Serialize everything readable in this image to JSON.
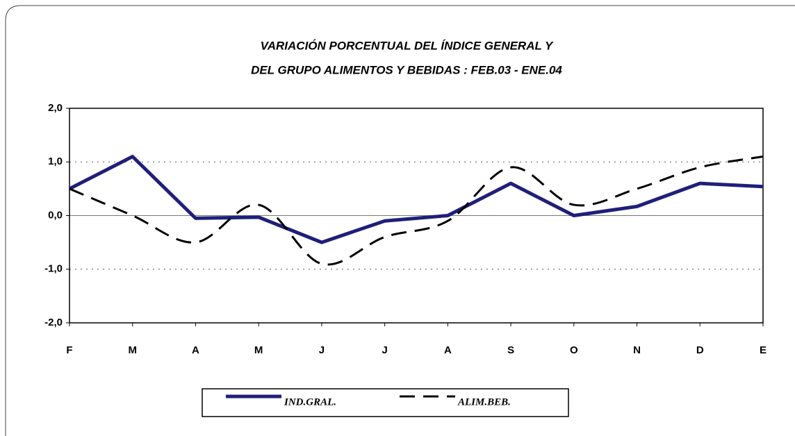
{
  "chart_data": {
    "type": "line",
    "title": [
      "VARIACIÓN PORCENTUAL DEL ÍNDICE GENERAL Y",
      "DEL GRUPO ALIMENTOS Y BEBIDAS : FEB.03 - ENE.04"
    ],
    "categories": [
      "F",
      "M",
      "A",
      "M",
      "J",
      "J",
      "A",
      "S",
      "O",
      "N",
      "D",
      "E"
    ],
    "series": [
      {
        "name": "IND.GRAL.",
        "color": "#1f1f7a",
        "style": "solid",
        "smooth": false,
        "values": [
          0.5,
          1.1,
          -0.05,
          -0.03,
          -0.5,
          -0.1,
          0.0,
          0.6,
          0.0,
          0.17,
          0.6,
          0.54
        ]
      },
      {
        "name": "ALIM.BEB.",
        "color": "#000000",
        "style": "dashed",
        "smooth": true,
        "values": [
          0.5,
          0.0,
          -0.5,
          0.2,
          -0.9,
          -0.4,
          -0.1,
          0.9,
          0.2,
          0.5,
          0.9,
          1.1
        ]
      }
    ],
    "ylim": [
      -2,
      2
    ],
    "yticks": [
      {
        "value": -2,
        "label": "-2,0"
      },
      {
        "value": -1,
        "label": "-1,0"
      },
      {
        "value": 0,
        "label": "0,0"
      },
      {
        "value": 1,
        "label": "1,0"
      },
      {
        "value": 2,
        "label": "2,0"
      }
    ],
    "grid": true,
    "legend": "bottom"
  }
}
